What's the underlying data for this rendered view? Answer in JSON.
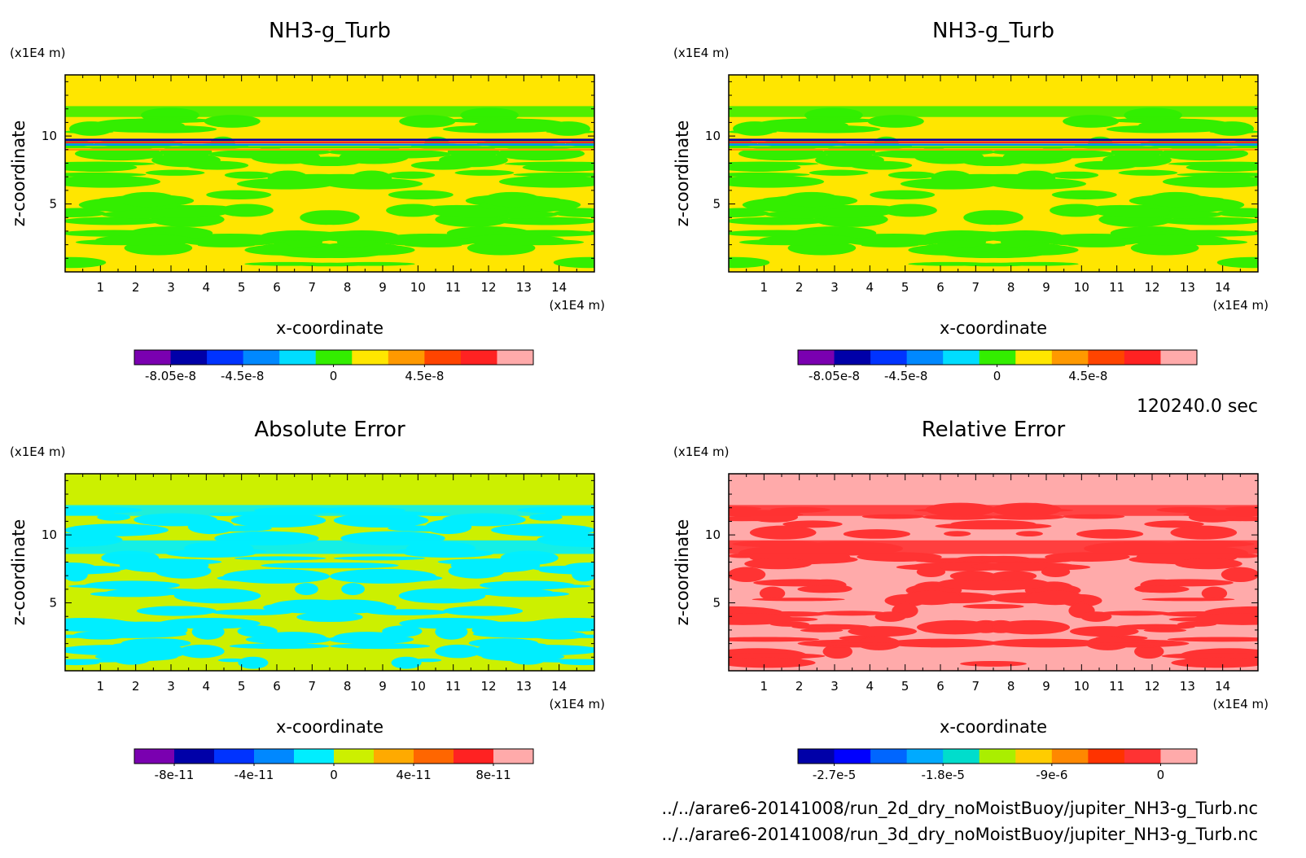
{
  "chart_data": [
    {
      "type": "heatmap",
      "title": "NH3-g_Turb",
      "xlabel": "x-coordinate",
      "ylabel": "z-coordinate",
      "x_unit": "(x1E4 m)",
      "y_unit": "(x1E4 m)",
      "xlim": [
        0,
        15
      ],
      "ylim": [
        0,
        14.5
      ],
      "xticks": [
        "1",
        "2",
        "3",
        "4",
        "5",
        "6",
        "7",
        "8",
        "9",
        "10",
        "11",
        "12",
        "13",
        "14"
      ],
      "yticks": [
        "5",
        "10"
      ],
      "background_color": "#ffe600",
      "pattern_color": "#33ee00",
      "colorbar": {
        "colors": [
          "#7a00b0",
          "#0000a8",
          "#0033ff",
          "#0088ff",
          "#00ddff",
          "#33ee00",
          "#ffe600",
          "#ff9900",
          "#ff4400",
          "#ff2222",
          "#ffaaaa"
        ],
        "labels": [
          {
            "value": -8.05e-08,
            "text": "-8.05e-8"
          },
          {
            "value": -4.5e-08,
            "text": "-4.5e-8"
          },
          {
            "value": 0,
            "text": "0"
          },
          {
            "value": 4.5e-08,
            "text": "4.5e-8"
          }
        ]
      }
    },
    {
      "type": "heatmap",
      "title": "NH3-g_Turb",
      "xlabel": "x-coordinate",
      "ylabel": "z-coordinate",
      "x_unit": "(x1E4 m)",
      "y_unit": "(x1E4 m)",
      "xlim": [
        0,
        15
      ],
      "ylim": [
        0,
        14.5
      ],
      "xticks": [
        "1",
        "2",
        "3",
        "4",
        "5",
        "6",
        "7",
        "8",
        "9",
        "10",
        "11",
        "12",
        "13",
        "14"
      ],
      "yticks": [
        "5",
        "10"
      ],
      "background_color": "#ffe600",
      "pattern_color": "#33ee00",
      "colorbar": {
        "colors": [
          "#7a00b0",
          "#0000a8",
          "#0033ff",
          "#0088ff",
          "#00ddff",
          "#33ee00",
          "#ffe600",
          "#ff9900",
          "#ff4400",
          "#ff2222",
          "#ffaaaa"
        ],
        "labels": [
          {
            "value": -8.05e-08,
            "text": "-8.05e-8"
          },
          {
            "value": -4.5e-08,
            "text": "-4.5e-8"
          },
          {
            "value": 0,
            "text": "0"
          },
          {
            "value": 4.5e-08,
            "text": "4.5e-8"
          }
        ]
      }
    },
    {
      "type": "heatmap",
      "title": "Absolute Error",
      "xlabel": "x-coordinate",
      "ylabel": "z-coordinate",
      "x_unit": "(x1E4 m)",
      "y_unit": "(x1E4 m)",
      "xlim": [
        0,
        15
      ],
      "ylim": [
        0,
        14.5
      ],
      "xticks": [
        "1",
        "2",
        "3",
        "4",
        "5",
        "6",
        "7",
        "8",
        "9",
        "10",
        "11",
        "12",
        "13",
        "14"
      ],
      "yticks": [
        "5",
        "10"
      ],
      "background_color": "#ccf000",
      "pattern_color": "#00eeff",
      "colorbar": {
        "colors": [
          "#7a00b0",
          "#0000a8",
          "#0033ff",
          "#0088ff",
          "#00eeff",
          "#ccf000",
          "#ffaa00",
          "#ff6600",
          "#ff2222",
          "#ffaaaa"
        ],
        "labels": [
          {
            "value": -8e-11,
            "text": "-8e-11"
          },
          {
            "value": -4e-11,
            "text": "-4e-11"
          },
          {
            "value": 0,
            "text": "0"
          },
          {
            "value": 4e-11,
            "text": "4e-11"
          },
          {
            "value": 8e-11,
            "text": "8e-11"
          }
        ]
      }
    },
    {
      "type": "heatmap",
      "title": "Relative Error",
      "xlabel": "x-coordinate",
      "ylabel": "z-coordinate",
      "x_unit": "(x1E4 m)",
      "y_unit": "(x1E4 m)",
      "xlim": [
        0,
        15
      ],
      "ylim": [
        0,
        14.5
      ],
      "xticks": [
        "1",
        "2",
        "3",
        "4",
        "5",
        "6",
        "7",
        "8",
        "9",
        "10",
        "11",
        "12",
        "13",
        "14"
      ],
      "yticks": [
        "5",
        "10"
      ],
      "background_color": "#ffaaaa",
      "pattern_color": "#ff3333",
      "colorbar": {
        "colors": [
          "#0000a8",
          "#0000ff",
          "#0066ff",
          "#00aaff",
          "#00ddcc",
          "#aaee00",
          "#ffcc00",
          "#ff8800",
          "#ff3300",
          "#ff3333",
          "#ffaaaa"
        ],
        "labels": [
          {
            "value": -2.7e-05,
            "text": "-2.7e-5"
          },
          {
            "value": -1.8e-05,
            "text": "-1.8e-5"
          },
          {
            "value": -9e-06,
            "text": "-9e-6"
          },
          {
            "value": 0,
            "text": "0"
          }
        ]
      }
    }
  ],
  "time_label": "120240.0 sec",
  "file_paths": [
    "../../arare6-20141008/run_2d_dry_noMoistBuoy/jupiter_NH3-g_Turb.nc",
    "../../arare6-20141008/run_3d_dry_noMoistBuoy/jupiter_NH3-g_Turb.nc"
  ]
}
